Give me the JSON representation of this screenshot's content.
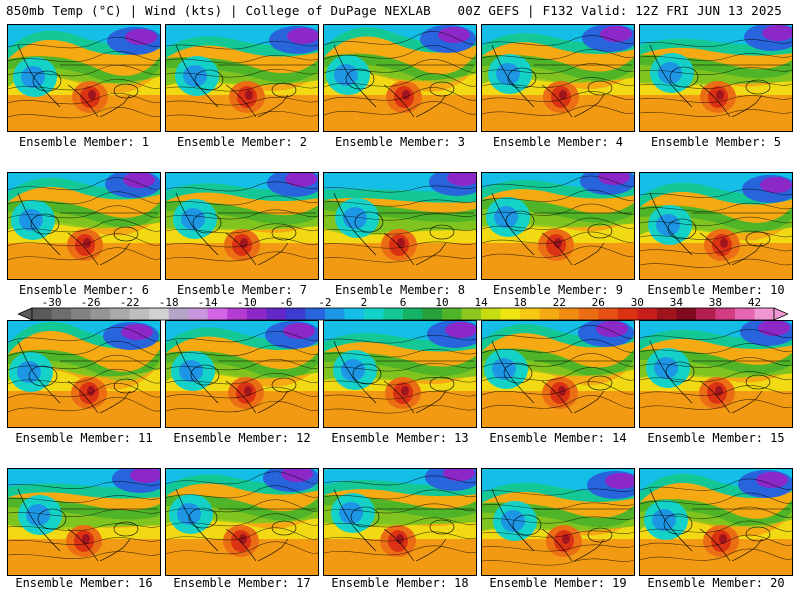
{
  "header": {
    "left": "850mb Temp (°C) | Wind (kts) | College of DuPage NEXLAB",
    "right": "00Z GEFS | F132 Valid: 12Z FRI JUN 13 2025"
  },
  "members": [
    "Ensemble Member: 1",
    "Ensemble Member: 2",
    "Ensemble Member: 3",
    "Ensemble Member: 4",
    "Ensemble Member: 5",
    "Ensemble Member: 6",
    "Ensemble Member: 7",
    "Ensemble Member: 8",
    "Ensemble Member: 9",
    "Ensemble Member: 10",
    "Ensemble Member: 11",
    "Ensemble Member: 12",
    "Ensemble Member: 13",
    "Ensemble Member: 14",
    "Ensemble Member: 15",
    "Ensemble Member: 16",
    "Ensemble Member: 17",
    "Ensemble Member: 18",
    "Ensemble Member: 19",
    "Ensemble Member: 20"
  ],
  "colorbar": {
    "labels": [
      "-30",
      "-26",
      "-22",
      "-18",
      "-14",
      "-10",
      "-6",
      "-2",
      "2",
      "6",
      "10",
      "14",
      "18",
      "22",
      "26",
      "30",
      "34",
      "38",
      "42"
    ],
    "min": -32,
    "max": 44,
    "step": 2,
    "colors": [
      "#5a5a5a",
      "#6e6e6e",
      "#828282",
      "#969696",
      "#aaaaaa",
      "#bebebe",
      "#d2d2d2",
      "#b4a5c8",
      "#c896dc",
      "#d264e6",
      "#b43cd2",
      "#8c28c8",
      "#6428c8",
      "#3c3cd2",
      "#2864dc",
      "#1e96e6",
      "#14bee6",
      "#14d2c8",
      "#14c896",
      "#14b464",
      "#28a03c",
      "#50b428",
      "#8cc81e",
      "#c8dc14",
      "#f0e614",
      "#f5c814",
      "#f5aa14",
      "#f08c14",
      "#eb6e14",
      "#e65014",
      "#dc3214",
      "#c81e1e",
      "#a0141e",
      "#820a1e",
      "#b41e50",
      "#d23c82",
      "#e664b4",
      "#f096d2"
    ]
  }
}
